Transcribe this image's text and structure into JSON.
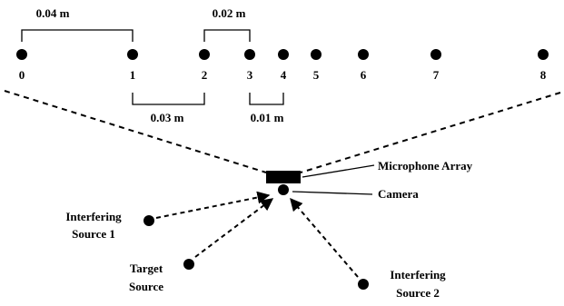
{
  "mic_indices": [
    "0",
    "1",
    "2",
    "3",
    "4",
    "5",
    "6",
    "7",
    "8"
  ],
  "spacing": {
    "d_0_1": "0.04 m",
    "d_2_3": "0.02 m",
    "d_1_2": "0.03 m",
    "d_3_4": "0.01 m"
  },
  "labels": {
    "array": "Microphone Array",
    "camera": "Camera",
    "interferer1_line1": "Interfering",
    "interferer1_line2": "Source 1",
    "target_line1": "Target",
    "target_line2": "Source",
    "interferer2_line1": "Interfering",
    "interferer2_line2": "Source 2"
  },
  "colors": {
    "ink": "#000000",
    "background": "#ffffff"
  }
}
